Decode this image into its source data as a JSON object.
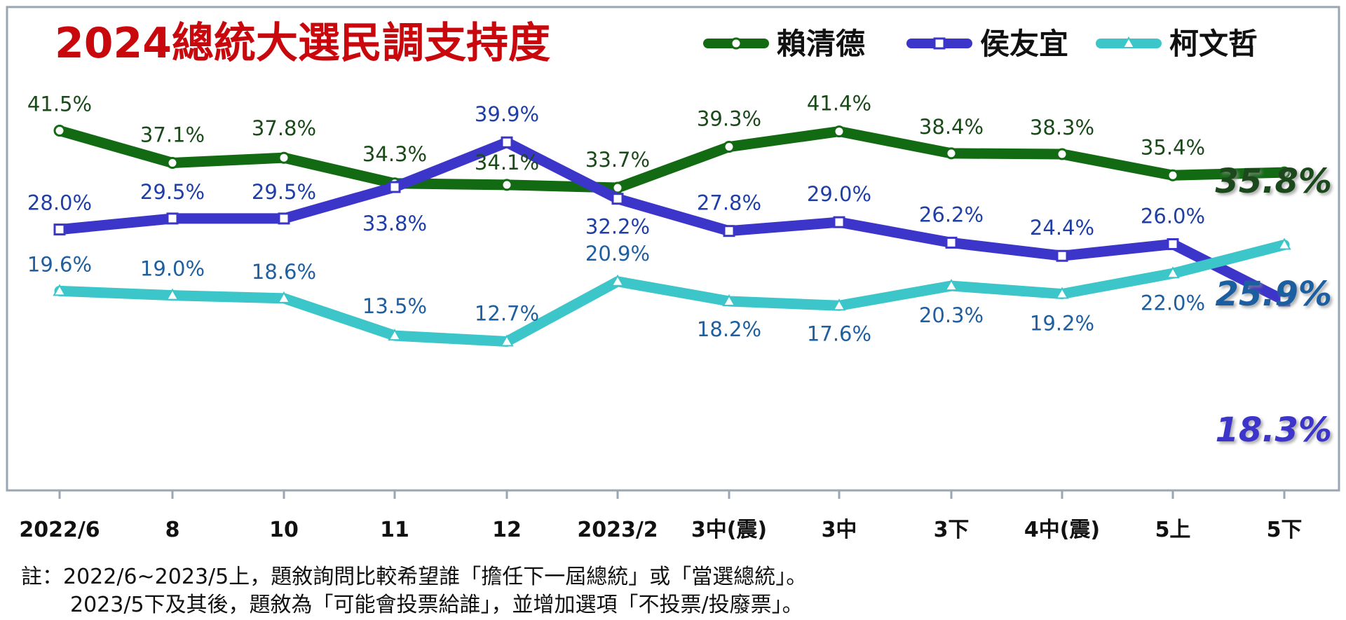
{
  "chart_data": {
    "type": "line",
    "title": "2024總統大選民調支持度",
    "categories": [
      "2022/6",
      "8",
      "10",
      "11",
      "12",
      "2023/2",
      "3中(震)",
      "3中",
      "3下",
      "4中(震)",
      "5上",
      "5下"
    ],
    "ylim": [
      10,
      45
    ],
    "grid": false,
    "legend_position": "top-right",
    "series": [
      {
        "name": "賴清德",
        "color": "#126b12",
        "marker": "circle",
        "values": [
          41.5,
          37.1,
          37.8,
          34.3,
          34.1,
          33.7,
          39.3,
          41.4,
          38.4,
          38.3,
          35.4,
          35.8
        ],
        "labels": [
          "41.5%",
          "37.1%",
          "37.8%",
          "34.3%",
          "34.1%",
          "33.7%",
          "39.3%",
          "41.4%",
          "38.4%",
          "38.3%",
          "35.4%",
          "35.8%"
        ]
      },
      {
        "name": "侯友宜",
        "color": "#3c35c9",
        "marker": "square",
        "values": [
          28.0,
          29.5,
          29.5,
          33.8,
          39.9,
          32.2,
          27.8,
          29.0,
          26.2,
          24.4,
          26.0,
          18.3
        ],
        "labels": [
          "28.0%",
          "29.5%",
          "29.5%",
          "33.8%",
          "39.9%",
          "32.2%",
          "27.8%",
          "29.0%",
          "26.2%",
          "24.4%",
          "26.0%",
          "18.3%"
        ]
      },
      {
        "name": "柯文哲",
        "color": "#3cc6c9",
        "marker": "triangle",
        "values": [
          19.6,
          19.0,
          18.6,
          13.5,
          12.7,
          20.9,
          18.2,
          17.6,
          20.3,
          19.2,
          22.0,
          25.9
        ],
        "labels": [
          "19.6%",
          "19.0%",
          "18.6%",
          "13.5%",
          "12.7%",
          "20.9%",
          "18.2%",
          "17.6%",
          "20.3%",
          "19.2%",
          "22.0%",
          "25.9%"
        ]
      }
    ],
    "colors": {
      "title": "#c8080d",
      "blue_label": "#1f3fa7",
      "teal_label": "#1f5fa0",
      "green_label": "#1a4a1a"
    }
  },
  "notes": {
    "line1": "註：2022/6~2023/5上，題敘詢問比較希望誰「擔任下一屆總統」或「當選總統」。",
    "line2": "2023/5下及其後，題敘為「可能會投票給誰」，並增加選項「不投票/投廢票」。"
  }
}
